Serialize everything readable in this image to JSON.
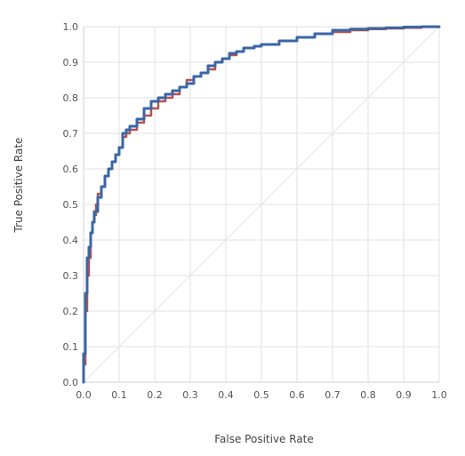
{
  "chart_data": {
    "type": "line",
    "xlabel": "False Positive Rate",
    "ylabel": "True Positive Rate",
    "xlim": [
      0,
      1
    ],
    "ylim": [
      0,
      1
    ],
    "x_ticks": [
      "0.0",
      "0.1",
      "0.2",
      "0.3",
      "0.4",
      "0.5",
      "0.6",
      "0.7",
      "0.8",
      "0.9",
      "1.0"
    ],
    "y_ticks": [
      "0.0",
      "0.1",
      "0.2",
      "0.3",
      "0.4",
      "0.5",
      "0.6",
      "0.7",
      "0.8",
      "0.9",
      "1.0"
    ],
    "grid": true,
    "diagonal": {
      "x": [
        0,
        1
      ],
      "y": [
        0,
        1
      ],
      "color": "#e6e6e6"
    },
    "series": [
      {
        "color": "#b5534f",
        "x": [
          0.0,
          0.0,
          0.005,
          0.005,
          0.01,
          0.01,
          0.015,
          0.02,
          0.02,
          0.025,
          0.03,
          0.035,
          0.04,
          0.05,
          0.06,
          0.07,
          0.08,
          0.09,
          0.1,
          0.11,
          0.12,
          0.13,
          0.15,
          0.17,
          0.19,
          0.21,
          0.23,
          0.25,
          0.27,
          0.29,
          0.31,
          0.33,
          0.35,
          0.37,
          0.39,
          0.41,
          0.43,
          0.45,
          0.48,
          0.5,
          0.55,
          0.6,
          0.65,
          0.7,
          0.75,
          0.8,
          0.85,
          0.9,
          0.95,
          1.0
        ],
        "y": [
          0.0,
          0.05,
          0.1,
          0.2,
          0.22,
          0.3,
          0.35,
          0.38,
          0.42,
          0.45,
          0.47,
          0.5,
          0.53,
          0.55,
          0.58,
          0.6,
          0.62,
          0.64,
          0.66,
          0.69,
          0.7,
          0.71,
          0.73,
          0.75,
          0.77,
          0.79,
          0.8,
          0.81,
          0.83,
          0.85,
          0.86,
          0.87,
          0.88,
          0.9,
          0.91,
          0.92,
          0.93,
          0.94,
          0.945,
          0.95,
          0.96,
          0.97,
          0.98,
          0.985,
          0.99,
          0.993,
          0.995,
          0.997,
          0.999,
          1.0
        ]
      },
      {
        "color": "#3a66a6",
        "x": [
          0.0,
          0.0,
          0.005,
          0.005,
          0.01,
          0.01,
          0.015,
          0.02,
          0.025,
          0.03,
          0.04,
          0.05,
          0.06,
          0.07,
          0.08,
          0.09,
          0.1,
          0.11,
          0.12,
          0.13,
          0.15,
          0.17,
          0.19,
          0.21,
          0.23,
          0.25,
          0.27,
          0.29,
          0.31,
          0.33,
          0.35,
          0.37,
          0.39,
          0.41,
          0.43,
          0.45,
          0.48,
          0.5,
          0.55,
          0.6,
          0.65,
          0.7,
          0.75,
          0.8,
          0.85,
          0.9,
          0.95,
          1.0
        ],
        "y": [
          0.0,
          0.08,
          0.15,
          0.25,
          0.3,
          0.35,
          0.38,
          0.42,
          0.45,
          0.48,
          0.52,
          0.55,
          0.58,
          0.6,
          0.62,
          0.64,
          0.66,
          0.7,
          0.71,
          0.72,
          0.74,
          0.77,
          0.79,
          0.8,
          0.81,
          0.82,
          0.83,
          0.84,
          0.86,
          0.87,
          0.89,
          0.9,
          0.91,
          0.925,
          0.93,
          0.94,
          0.945,
          0.95,
          0.96,
          0.97,
          0.98,
          0.99,
          0.993,
          0.995,
          0.997,
          0.999,
          1.0,
          1.0
        ]
      }
    ]
  }
}
